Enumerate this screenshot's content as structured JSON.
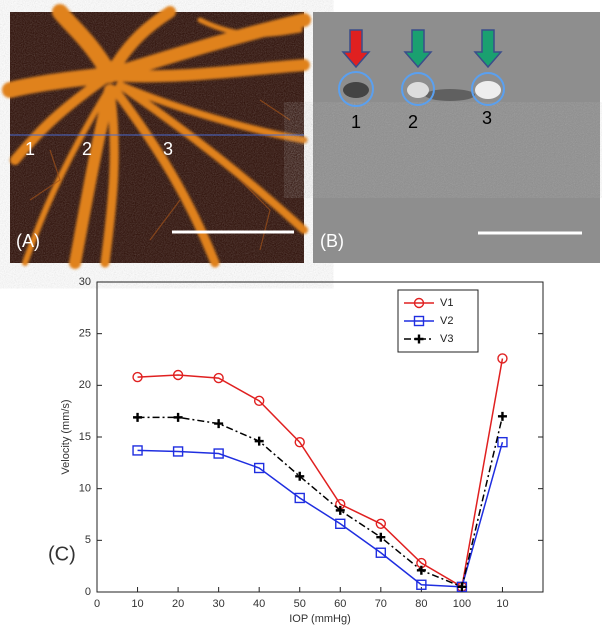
{
  "panels": {
    "a": {
      "label": "(A)",
      "markers": [
        "1",
        "2",
        "3"
      ]
    },
    "b": {
      "label": "(B)",
      "markers": [
        "1",
        "2",
        "3"
      ]
    },
    "c": {
      "label": "(C)"
    }
  },
  "chart_data": {
    "type": "line",
    "x_label": "IOP (mmHg)",
    "y_label": "Velocity (mm/s)",
    "categories": [
      "0",
      "10",
      "20",
      "30",
      "40",
      "50",
      "60",
      "70",
      "80",
      "100",
      "10",
      null
    ],
    "series": [
      {
        "name": "V1",
        "color": "#e02020",
        "marker": "circle",
        "dash": "solid",
        "values": [
          null,
          20.8,
          21.0,
          20.7,
          18.5,
          14.5,
          8.5,
          6.6,
          2.8,
          0.5,
          22.6,
          null
        ]
      },
      {
        "name": "V2",
        "color": "#1f2ee0",
        "marker": "square",
        "dash": "solid",
        "values": [
          null,
          13.7,
          13.6,
          13.4,
          12.0,
          9.1,
          6.6,
          3.8,
          0.7,
          0.5,
          14.5,
          null
        ]
      },
      {
        "name": "V3",
        "color": "#000000",
        "marker": "plus",
        "dash": "dashdot",
        "values": [
          null,
          16.9,
          16.9,
          16.3,
          14.6,
          11.2,
          7.9,
          5.3,
          2.1,
          0.5,
          17.0,
          null
        ]
      }
    ],
    "ylim": [
      0,
      30
    ],
    "yticks": [
      0,
      5,
      10,
      15,
      20,
      25,
      30
    ],
    "grid": false,
    "legend": "upper-right"
  }
}
